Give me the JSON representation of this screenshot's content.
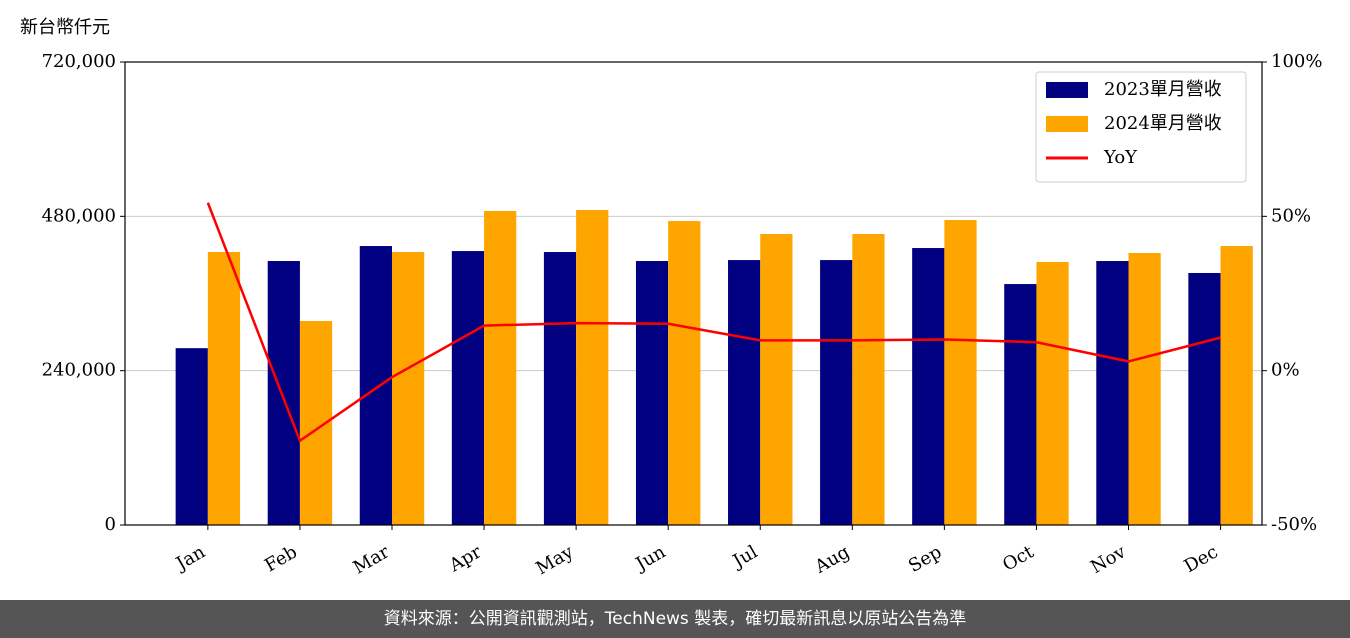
{
  "chart_data": {
    "type": "bar",
    "unit_label": "新台幣仟元",
    "footer": "資料來源：公開資訊觀測站，TechNews 製表，確切最新訊息以原站公告為準",
    "categories": [
      "Jan",
      "Feb",
      "Mar",
      "Apr",
      "May",
      "Jun",
      "Jul",
      "Aug",
      "Sep",
      "Oct",
      "Nov",
      "Dec"
    ],
    "series": [
      {
        "name": "2023單月營收",
        "type": "bar",
        "color": "#000080",
        "values": [
          275000,
          410500,
          433800,
          426000,
          424500,
          410500,
          412000,
          412000,
          430700,
          374700,
          410500,
          391900
        ]
      },
      {
        "name": "2024單月營收",
        "type": "bar",
        "color": "#ffa500",
        "values": [
          424500,
          317200,
          424500,
          488300,
          489800,
          472700,
          452500,
          452500,
          474300,
          409000,
          423000,
          433800
        ]
      },
      {
        "name": "YoY",
        "type": "line",
        "axis": "y2",
        "color": "#ff0000",
        "values": [
          54.4,
          -22.7,
          -2.1,
          14.6,
          15.4,
          15.2,
          9.8,
          9.8,
          10.1,
          9.2,
          3.0,
          10.7
        ]
      }
    ],
    "ylim": [
      0,
      720000
    ],
    "yticks": [
      {
        "value": 0,
        "label": "0"
      },
      {
        "value": 240000,
        "label": "240,000"
      },
      {
        "value": 480000,
        "label": "480,000"
      },
      {
        "value": 720000,
        "label": "720,000"
      }
    ],
    "y2lim": [
      -50,
      100
    ],
    "y2ticks": [
      {
        "value": -50,
        "label": "-50%"
      },
      {
        "value": 0,
        "label": "0%"
      },
      {
        "value": 50,
        "label": "50%"
      },
      {
        "value": 100,
        "label": "100%"
      }
    ],
    "grid": true,
    "legend": "upper right"
  }
}
